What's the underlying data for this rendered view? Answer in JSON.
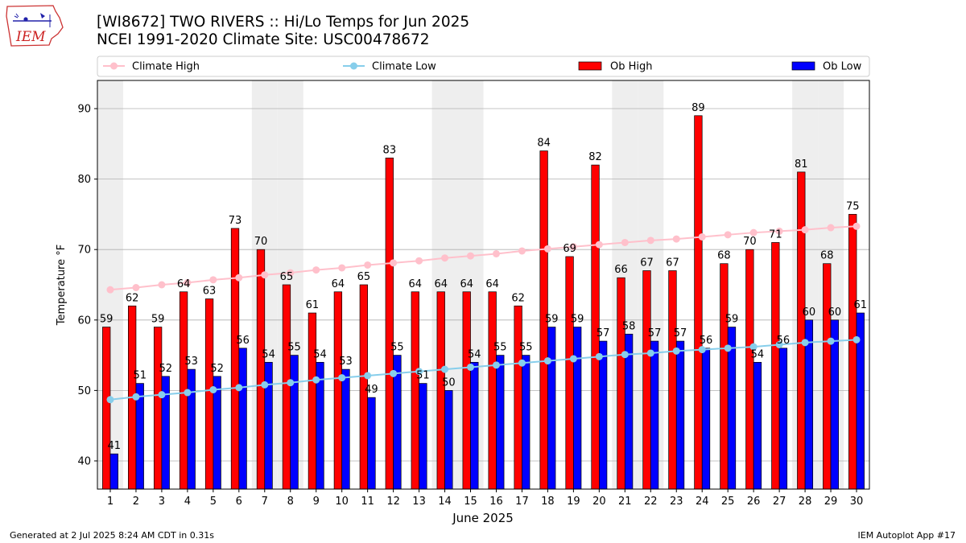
{
  "title_line1": "[WI8672] TWO RIVERS :: Hi/Lo Temps for Jun 2025",
  "title_line2": "NCEI 1991-2020 Climate Site: USC00478672",
  "logo_text": "IEM",
  "footer_left": "Generated at 2 Jul 2025 8:24 AM CDT in 0.31s",
  "footer_right": "IEM Autoplot App #17",
  "colors": {
    "ob_high": "#ff0000",
    "ob_low": "#0000ff",
    "climate_high": "#ffc0cb",
    "climate_low": "#87ceeb",
    "weekend_band": "#eeeeee",
    "grid": "#b0b0b0"
  },
  "chart_data": {
    "type": "bar",
    "xlabel": "June 2025",
    "ylabel": "Temperature °F",
    "ylim": [
      36,
      94
    ],
    "yticks": [
      40,
      50,
      60,
      70,
      80,
      90
    ],
    "grid": "horizontal",
    "legend_position": "top",
    "categories": [
      "1",
      "2",
      "3",
      "4",
      "5",
      "6",
      "7",
      "8",
      "9",
      "10",
      "11",
      "12",
      "13",
      "14",
      "15",
      "16",
      "17",
      "18",
      "19",
      "20",
      "21",
      "22",
      "23",
      "24",
      "25",
      "26",
      "27",
      "28",
      "29",
      "30"
    ],
    "shaded_days": [
      1,
      7,
      8,
      14,
      15,
      21,
      22,
      28,
      29
    ],
    "series": [
      {
        "name": "Ob High",
        "kind": "bar",
        "color": "#ff0000",
        "values": [
          59,
          62,
          59,
          64,
          63,
          73,
          70,
          65,
          61,
          64,
          65,
          83,
          64,
          64,
          64,
          64,
          62,
          84,
          69,
          82,
          66,
          67,
          67,
          89,
          68,
          70,
          71,
          81,
          68,
          75
        ]
      },
      {
        "name": "Ob Low",
        "kind": "bar",
        "color": "#0000ff",
        "values": [
          41,
          51,
          52,
          53,
          52,
          56,
          54,
          55,
          54,
          53,
          49,
          55,
          51,
          50,
          54,
          55,
          55,
          59,
          59,
          57,
          58,
          57,
          57,
          56,
          59,
          54,
          56,
          60,
          60,
          61
        ]
      },
      {
        "name": "Climate High",
        "kind": "line",
        "color": "#ffc0cb",
        "values": [
          64.3,
          64.6,
          65.0,
          65.3,
          65.7,
          66.0,
          66.4,
          66.7,
          67.1,
          67.4,
          67.8,
          68.1,
          68.4,
          68.8,
          69.1,
          69.4,
          69.8,
          70.1,
          70.4,
          70.7,
          71.0,
          71.3,
          71.5,
          71.8,
          72.1,
          72.4,
          72.6,
          72.8,
          73.1,
          73.3
        ]
      },
      {
        "name": "Climate Low",
        "kind": "line",
        "color": "#87ceeb",
        "values": [
          48.7,
          49.1,
          49.4,
          49.7,
          50.1,
          50.4,
          50.8,
          51.1,
          51.5,
          51.8,
          52.1,
          52.4,
          52.7,
          53.0,
          53.3,
          53.6,
          53.9,
          54.2,
          54.5,
          54.8,
          55.1,
          55.3,
          55.6,
          55.8,
          56.0,
          56.2,
          56.5,
          56.8,
          57.0,
          57.2
        ]
      }
    ]
  }
}
